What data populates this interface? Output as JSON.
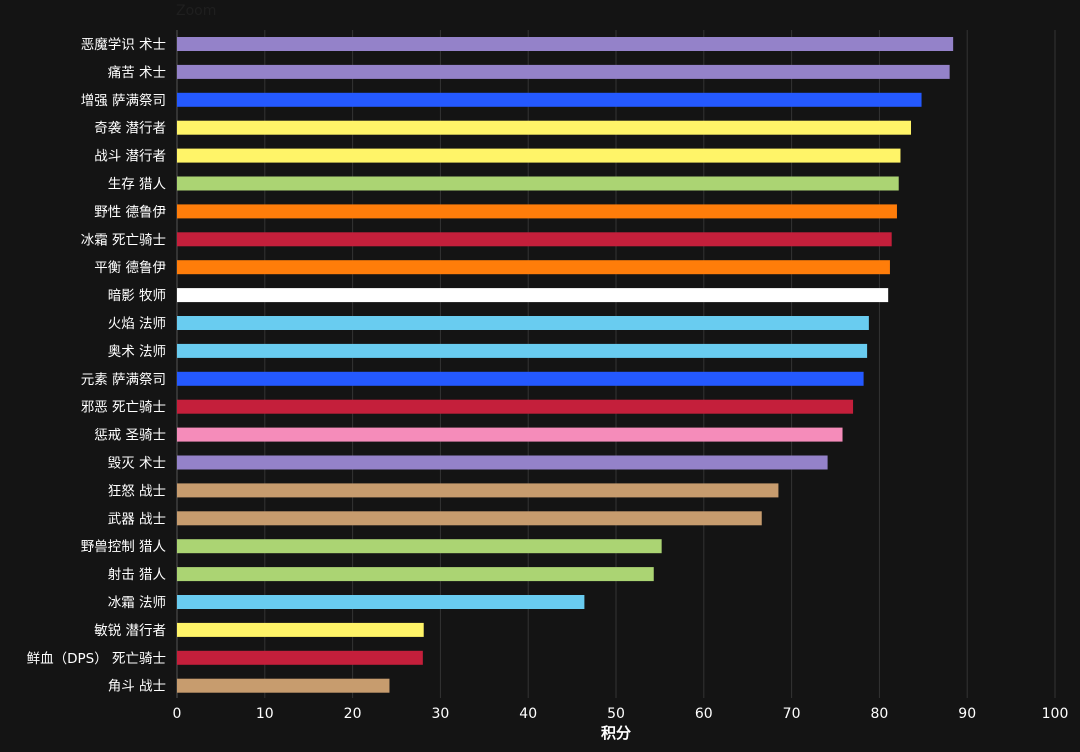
{
  "toolbar": {
    "zoom_label": "Zoom"
  },
  "chart_data": {
    "type": "bar",
    "orientation": "horizontal",
    "xlabel": "积分",
    "ylabel": "",
    "xlim": [
      0,
      100
    ],
    "xticks": [
      0,
      10,
      20,
      30,
      40,
      50,
      60,
      70,
      80,
      90,
      100
    ],
    "grid": true,
    "legend": "none",
    "background": "#141414",
    "categories": [
      "恶魔学识 术士",
      "痛苦 术士",
      "增强 萨满祭司",
      "奇袭 潜行者",
      "战斗 潜行者",
      "生存 猎人",
      "野性 德鲁伊",
      "冰霜 死亡骑士",
      "平衡 德鲁伊",
      "暗影 牧师",
      "火焰 法师",
      "奥术 法师",
      "元素 萨满祭司",
      "邪恶 死亡骑士",
      "惩戒 圣骑士",
      "毁灭 术士",
      "狂怒 战士",
      "武器 战士",
      "野兽控制 猎人",
      "射击 猎人",
      "冰霜 法师",
      "敏锐 潜行者",
      "鲜血（DPS） 死亡骑士",
      "角斗 战士"
    ],
    "values": [
      88.4,
      88.0,
      84.8,
      83.6,
      82.4,
      82.2,
      82.0,
      81.4,
      81.2,
      81.0,
      78.8,
      78.6,
      78.2,
      77.0,
      75.8,
      74.1,
      68.5,
      66.6,
      55.2,
      54.3,
      46.4,
      28.1,
      28.0,
      24.2
    ],
    "colors": [
      "#9482c9",
      "#9482c9",
      "#2459ff",
      "#fff468",
      "#fff468",
      "#abd473",
      "#ff7d0a",
      "#c41f3b",
      "#ff7d0a",
      "#ffffff",
      "#69ccf0",
      "#69ccf0",
      "#2459ff",
      "#c41f3b",
      "#f58cba",
      "#9482c9",
      "#c79c6e",
      "#c79c6e",
      "#abd473",
      "#abd473",
      "#69ccf0",
      "#fff468",
      "#c41f3b",
      "#c79c6e"
    ]
  }
}
